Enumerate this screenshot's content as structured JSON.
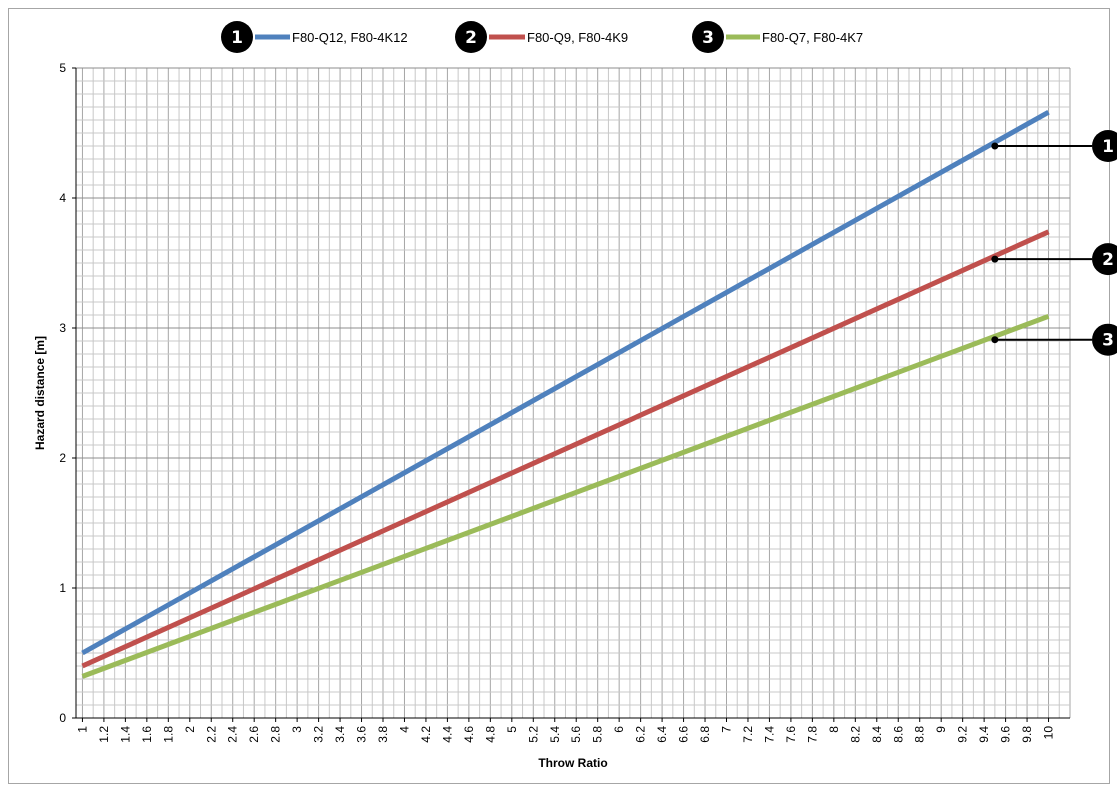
{
  "chart_data": {
    "type": "line",
    "title": "",
    "xlabel": "Throw Ratio",
    "ylabel": "Hazard distance [m]",
    "xlim": [
      0.94,
      10.2
    ],
    "ylim": [
      0,
      5
    ],
    "x_ticks": [
      "1",
      "1.2",
      "1.4",
      "1.6",
      "1.8",
      "2",
      "2.2",
      "2.4",
      "2.6",
      "2.8",
      "3",
      "3.2",
      "3.4",
      "3.6",
      "3.8",
      "4",
      "4.2",
      "4.4",
      "4.6",
      "4.8",
      "5",
      "5.2",
      "5.4",
      "5.6",
      "5.8",
      "6",
      "6.2",
      "6.4",
      "6.6",
      "6.8",
      "7",
      "7.2",
      "7.4",
      "7.6",
      "7.8",
      "8",
      "8.2",
      "8.4",
      "8.6",
      "8.8",
      "9",
      "9.2",
      "9.4",
      "9.6",
      "9.8",
      "10"
    ],
    "y_ticks": [
      "0",
      "1",
      "2",
      "3",
      "4",
      "5"
    ],
    "grid": true,
    "legend_position": "top",
    "series": [
      {
        "badge": "1",
        "name": "F80-Q12, F80-4K12",
        "color": "#4f81bd",
        "x": [
          1,
          10
        ],
        "y": [
          0.5,
          4.66
        ],
        "callout_x": 9.5,
        "callout_y": 4.4
      },
      {
        "badge": "2",
        "name": "F80-Q9, F80-4K9",
        "color": "#c0504d",
        "x": [
          1,
          10
        ],
        "y": [
          0.4,
          3.74
        ],
        "callout_x": 9.5,
        "callout_y": 3.53
      },
      {
        "badge": "3",
        "name": "F80-Q7, F80-4K7",
        "color": "#9bbb59",
        "x": [
          1,
          10
        ],
        "y": [
          0.32,
          3.09
        ],
        "callout_x": 9.5,
        "callout_y": 2.91
      }
    ]
  }
}
